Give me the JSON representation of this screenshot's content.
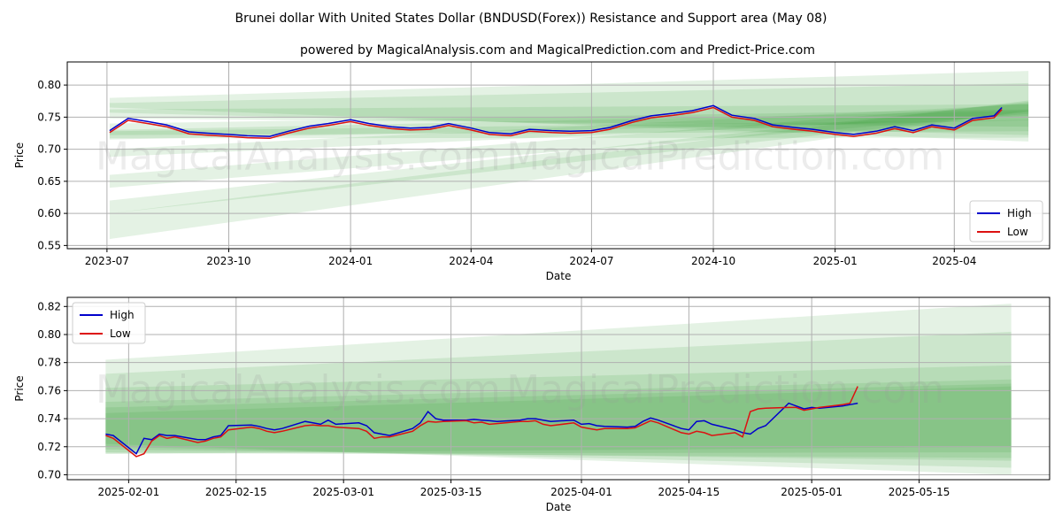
{
  "title": "Brunei dollar With United States Dollar (BNDUSD(Forex)) Resistance and Support area (May 08)",
  "subtitle": "powered by MagicalAnalysis.com and MagicalPrediction.com and Predict-Price.com",
  "watermarks": [
    "MagicalAnalysis.com",
    "MagicalPrediction.com"
  ],
  "colors": {
    "high": "#0000cc",
    "low": "#dd1111",
    "band": "#2e9e2e",
    "grid": "#b0b0b0"
  },
  "chart_data": [
    {
      "type": "line",
      "xlabel": "Date",
      "ylabel": "Price",
      "legend": [
        "High",
        "Low"
      ],
      "legend_position": "bottom-right",
      "grid": true,
      "xticks": [
        "2023-07",
        "2023-10",
        "2024-01",
        "2024-04",
        "2024-07",
        "2024-10",
        "2025-01",
        "2025-04"
      ],
      "yticks": [
        "0.55",
        "0.60",
        "0.65",
        "0.70",
        "0.75",
        "0.80"
      ],
      "xlim": [
        "2023-06-01",
        "2025-06-12"
      ],
      "ylim": [
        0.545,
        0.836
      ],
      "series": [
        {
          "name": "High",
          "x": [
            "2023-07-03",
            "2023-07-17",
            "2023-08-01",
            "2023-08-15",
            "2023-09-01",
            "2023-09-15",
            "2023-10-01",
            "2023-10-15",
            "2023-11-01",
            "2023-11-15",
            "2023-12-01",
            "2023-12-15",
            "2024-01-01",
            "2024-01-15",
            "2024-02-01",
            "2024-02-15",
            "2024-03-01",
            "2024-03-15",
            "2024-04-01",
            "2024-04-15",
            "2024-05-01",
            "2024-05-15",
            "2024-06-01",
            "2024-06-15",
            "2024-07-01",
            "2024-07-15",
            "2024-08-01",
            "2024-08-15",
            "2024-09-01",
            "2024-09-15",
            "2024-10-01",
            "2024-10-15",
            "2024-11-01",
            "2024-11-15",
            "2024-12-01",
            "2024-12-15",
            "2025-01-01",
            "2025-01-15",
            "2025-02-01",
            "2025-02-15",
            "2025-03-01",
            "2025-03-15",
            "2025-04-01",
            "2025-04-15",
            "2025-05-01",
            "2025-05-07"
          ],
          "y": [
            0.729,
            0.748,
            0.743,
            0.738,
            0.727,
            0.725,
            0.723,
            0.721,
            0.72,
            0.728,
            0.736,
            0.74,
            0.746,
            0.74,
            0.735,
            0.733,
            0.734,
            0.74,
            0.733,
            0.726,
            0.724,
            0.731,
            0.729,
            0.728,
            0.729,
            0.734,
            0.745,
            0.752,
            0.756,
            0.76,
            0.768,
            0.753,
            0.748,
            0.738,
            0.734,
            0.731,
            0.726,
            0.723,
            0.728,
            0.735,
            0.729,
            0.738,
            0.733,
            0.748,
            0.752,
            0.765
          ]
        },
        {
          "name": "Low",
          "x": [
            "2023-07-03",
            "2023-07-17",
            "2023-08-01",
            "2023-08-15",
            "2023-09-01",
            "2023-09-15",
            "2023-10-01",
            "2023-10-15",
            "2023-11-01",
            "2023-11-15",
            "2023-12-01",
            "2023-12-15",
            "2024-01-01",
            "2024-01-15",
            "2024-02-01",
            "2024-02-15",
            "2024-03-01",
            "2024-03-15",
            "2024-04-01",
            "2024-04-15",
            "2024-05-01",
            "2024-05-15",
            "2024-06-01",
            "2024-06-15",
            "2024-07-01",
            "2024-07-15",
            "2024-08-01",
            "2024-08-15",
            "2024-09-01",
            "2024-09-15",
            "2024-10-01",
            "2024-10-15",
            "2024-11-01",
            "2024-11-15",
            "2024-12-01",
            "2024-12-15",
            "2025-01-01",
            "2025-01-15",
            "2025-02-01",
            "2025-02-15",
            "2025-03-01",
            "2025-03-15",
            "2025-04-01",
            "2025-04-15",
            "2025-05-01",
            "2025-05-07"
          ],
          "y": [
            0.726,
            0.745,
            0.74,
            0.735,
            0.724,
            0.722,
            0.72,
            0.718,
            0.717,
            0.725,
            0.733,
            0.737,
            0.743,
            0.737,
            0.732,
            0.73,
            0.731,
            0.737,
            0.73,
            0.723,
            0.721,
            0.728,
            0.726,
            0.725,
            0.726,
            0.731,
            0.742,
            0.749,
            0.753,
            0.757,
            0.765,
            0.75,
            0.745,
            0.735,
            0.731,
            0.728,
            0.723,
            0.72,
            0.725,
            0.732,
            0.726,
            0.735,
            0.73,
            0.745,
            0.749,
            0.762
          ]
        }
      ],
      "bands": [
        {
          "x": [
            "2023-07-03",
            "2025-05-27"
          ],
          "upper": [
            0.78,
            0.822
          ],
          "lower": [
            0.765,
            0.712
          ]
        },
        {
          "x": [
            "2023-07-03",
            "2025-05-27"
          ],
          "upper": [
            0.772,
            0.803
          ],
          "lower": [
            0.757,
            0.722
          ]
        },
        {
          "x": [
            "2023-07-03",
            "2025-05-27"
          ],
          "upper": [
            0.762,
            0.77
          ],
          "lower": [
            0.748,
            0.735
          ]
        },
        {
          "x": [
            "2023-07-03",
            "2025-05-27"
          ],
          "upper": [
            0.73,
            0.76
          ],
          "lower": [
            0.715,
            0.745
          ]
        },
        {
          "x": [
            "2023-07-03",
            "2025-05-27"
          ],
          "upper": [
            0.7,
            0.77
          ],
          "lower": [
            0.688,
            0.752
          ]
        },
        {
          "x": [
            "2023-07-03",
            "2025-05-27"
          ],
          "upper": [
            0.66,
            0.772
          ],
          "lower": [
            0.64,
            0.755
          ]
        },
        {
          "x": [
            "2023-07-03",
            "2025-05-27"
          ],
          "upper": [
            0.62,
            0.774
          ],
          "lower": [
            0.6,
            0.758
          ]
        },
        {
          "x": [
            "2023-07-03",
            "2025-05-27"
          ],
          "upper": [
            0.6,
            0.776
          ],
          "lower": [
            0.56,
            0.76
          ]
        },
        {
          "x": [
            "2023-07-03",
            "2025-05-27"
          ],
          "upper": [
            0.728,
            0.746
          ],
          "lower": [
            0.717,
            0.718
          ]
        },
        {
          "x": [
            "2023-07-03",
            "2025-05-27"
          ],
          "upper": [
            0.74,
            0.762
          ],
          "lower": [
            0.722,
            0.728
          ]
        }
      ]
    },
    {
      "type": "line",
      "xlabel": "Date",
      "ylabel": "Price",
      "legend": [
        "High",
        "Low"
      ],
      "legend_position": "top-left",
      "grid": true,
      "xticks": [
        "2025-02-01",
        "2025-02-15",
        "2025-03-01",
        "2025-03-15",
        "2025-04-01",
        "2025-04-15",
        "2025-05-01",
        "2025-05-15"
      ],
      "yticks": [
        "0.70",
        "0.72",
        "0.74",
        "0.76",
        "0.78",
        "0.80",
        "0.82"
      ],
      "xlim": [
        "2025-01-24",
        "2025-06-01"
      ],
      "ylim": [
        0.6965,
        0.8265
      ],
      "series": [
        {
          "name": "High",
          "x": [
            "2025-01-29",
            "2025-01-30",
            "2025-02-02",
            "2025-02-03",
            "2025-02-04",
            "2025-02-05",
            "2025-02-06",
            "2025-02-07",
            "2025-02-10",
            "2025-02-11",
            "2025-02-12",
            "2025-02-13",
            "2025-02-14",
            "2025-02-17",
            "2025-02-18",
            "2025-02-19",
            "2025-02-20",
            "2025-02-21",
            "2025-02-24",
            "2025-02-25",
            "2025-02-26",
            "2025-02-27",
            "2025-02-28",
            "2025-03-03",
            "2025-03-04",
            "2025-03-05",
            "2025-03-06",
            "2025-03-07",
            "2025-03-10",
            "2025-03-11",
            "2025-03-12",
            "2025-03-13",
            "2025-03-14",
            "2025-03-17",
            "2025-03-18",
            "2025-03-19",
            "2025-03-20",
            "2025-03-21",
            "2025-03-24",
            "2025-03-25",
            "2025-03-26",
            "2025-03-27",
            "2025-03-28",
            "2025-03-31",
            "2025-04-01",
            "2025-04-02",
            "2025-04-03",
            "2025-04-04",
            "2025-04-07",
            "2025-04-08",
            "2025-04-09",
            "2025-04-10",
            "2025-04-11",
            "2025-04-14",
            "2025-04-15",
            "2025-04-16",
            "2025-04-17",
            "2025-04-18",
            "2025-04-21",
            "2025-04-22",
            "2025-04-23",
            "2025-04-24",
            "2025-04-25",
            "2025-04-28",
            "2025-04-29",
            "2025-04-30",
            "2025-05-01",
            "2025-05-02",
            "2025-05-05",
            "2025-05-06",
            "2025-05-07"
          ],
          "y": [
            0.729,
            0.728,
            0.715,
            0.726,
            0.725,
            0.729,
            0.728,
            0.728,
            0.725,
            0.725,
            0.727,
            0.728,
            0.735,
            0.7355,
            0.7345,
            0.733,
            0.732,
            0.733,
            0.738,
            0.737,
            0.736,
            0.739,
            0.736,
            0.737,
            0.735,
            0.73,
            0.729,
            0.728,
            0.733,
            0.737,
            0.745,
            0.74,
            0.739,
            0.739,
            0.7395,
            0.739,
            0.7385,
            0.738,
            0.739,
            0.74,
            0.74,
            0.739,
            0.738,
            0.739,
            0.736,
            0.7365,
            0.735,
            0.7345,
            0.734,
            0.7345,
            0.738,
            0.7405,
            0.739,
            0.733,
            0.732,
            0.738,
            0.7385,
            0.736,
            0.732,
            0.73,
            0.729,
            0.733,
            0.735,
            0.751,
            0.749,
            0.747,
            0.748,
            0.7475,
            0.749,
            0.75,
            0.751
          ]
        },
        {
          "name": "Low",
          "x": [
            "2025-01-29",
            "2025-01-30",
            "2025-02-02",
            "2025-02-03",
            "2025-02-04",
            "2025-02-05",
            "2025-02-06",
            "2025-02-07",
            "2025-02-10",
            "2025-02-11",
            "2025-02-12",
            "2025-02-13",
            "2025-02-14",
            "2025-02-17",
            "2025-02-18",
            "2025-02-19",
            "2025-02-20",
            "2025-02-21",
            "2025-02-24",
            "2025-02-25",
            "2025-02-26",
            "2025-02-27",
            "2025-02-28",
            "2025-03-03",
            "2025-03-04",
            "2025-03-05",
            "2025-03-06",
            "2025-03-07",
            "2025-03-10",
            "2025-03-11",
            "2025-03-12",
            "2025-03-13",
            "2025-03-14",
            "2025-03-17",
            "2025-03-18",
            "2025-03-19",
            "2025-03-20",
            "2025-03-21",
            "2025-03-24",
            "2025-03-25",
            "2025-03-26",
            "2025-03-27",
            "2025-03-28",
            "2025-03-31",
            "2025-04-01",
            "2025-04-02",
            "2025-04-03",
            "2025-04-04",
            "2025-04-07",
            "2025-04-08",
            "2025-04-09",
            "2025-04-10",
            "2025-04-11",
            "2025-04-14",
            "2025-04-15",
            "2025-04-16",
            "2025-04-17",
            "2025-04-18",
            "2025-04-21",
            "2025-04-22",
            "2025-04-23",
            "2025-04-24",
            "2025-04-25",
            "2025-04-28",
            "2025-04-29",
            "2025-04-30",
            "2025-05-01",
            "2025-05-02",
            "2025-05-05",
            "2025-05-06",
            "2025-05-07"
          ],
          "y": [
            0.728,
            0.726,
            0.713,
            0.715,
            0.724,
            0.728,
            0.726,
            0.727,
            0.723,
            0.724,
            0.726,
            0.727,
            0.732,
            0.734,
            0.733,
            0.731,
            0.73,
            0.731,
            0.735,
            0.7355,
            0.735,
            0.735,
            0.734,
            0.733,
            0.731,
            0.726,
            0.727,
            0.727,
            0.731,
            0.735,
            0.738,
            0.7375,
            0.738,
            0.7385,
            0.737,
            0.7375,
            0.736,
            0.7365,
            0.738,
            0.738,
            0.7385,
            0.736,
            0.735,
            0.737,
            0.734,
            0.733,
            0.732,
            0.733,
            0.733,
            0.7335,
            0.736,
            0.7385,
            0.737,
            0.73,
            0.729,
            0.731,
            0.73,
            0.728,
            0.73,
            0.727,
            0.745,
            0.747,
            0.7475,
            0.748,
            0.748,
            0.746,
            0.747,
            0.748,
            0.75,
            0.751,
            0.763
          ]
        }
      ],
      "bands": [
        {
          "x": [
            "2025-01-29",
            "2025-05-27"
          ],
          "upper": [
            0.782,
            0.822
          ],
          "lower": [
            0.722,
            0.7
          ]
        },
        {
          "x": [
            "2025-01-29",
            "2025-05-27"
          ],
          "upper": [
            0.772,
            0.802
          ],
          "lower": [
            0.72,
            0.705
          ]
        },
        {
          "x": [
            "2025-01-29",
            "2025-05-27"
          ],
          "upper": [
            0.762,
            0.778
          ],
          "lower": [
            0.718,
            0.71
          ]
        },
        {
          "x": [
            "2025-01-29",
            "2025-05-27"
          ],
          "upper": [
            0.752,
            0.768
          ],
          "lower": [
            0.716,
            0.712
          ]
        },
        {
          "x": [
            "2025-01-29",
            "2025-05-27"
          ],
          "upper": [
            0.748,
            0.765
          ],
          "lower": [
            0.715,
            0.716
          ]
        },
        {
          "x": [
            "2025-01-29",
            "2025-05-27"
          ],
          "upper": [
            0.744,
            0.763
          ],
          "lower": [
            0.715,
            0.72
          ]
        }
      ]
    }
  ]
}
